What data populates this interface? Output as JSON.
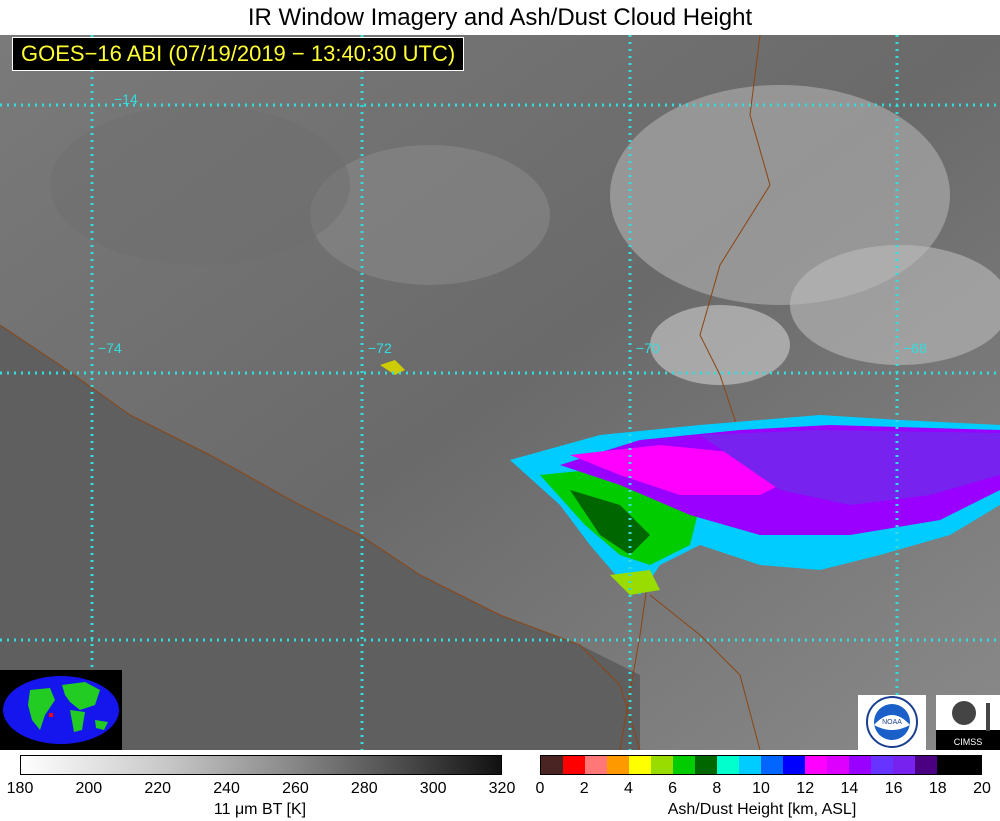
{
  "title": "IR Window Imagery and Ash/Dust Cloud Height",
  "time_stamp": "GOES−16 ABI (07/19/2019 − 13:40:30 UTC)",
  "lat_labels": [
    "−14"
  ],
  "lon_labels": [
    "−74",
    "−72",
    "−70",
    "−68"
  ],
  "bt_colorbar": {
    "label": "11 μm BT [K]",
    "ticks": [
      "180",
      "200",
      "220",
      "240",
      "260",
      "280",
      "300",
      "320"
    ]
  },
  "ash_colorbar": {
    "label": "Ash/Dust Height [km, ASL]",
    "ticks": [
      "0",
      "2",
      "4",
      "6",
      "8",
      "10",
      "12",
      "14",
      "16",
      "18",
      "20"
    ],
    "colors": [
      "#4a2323",
      "#ff0000",
      "#ff7777",
      "#ff9900",
      "#ffff00",
      "#99dd00",
      "#00cc00",
      "#006600",
      "#00ffcc",
      "#00ccff",
      "#0066ff",
      "#0000ff",
      "#ff00ff",
      "#dd00ff",
      "#9900ff",
      "#6633ff",
      "#7722ee",
      "#4b0082",
      "#000000",
      "#000000"
    ]
  },
  "logos": {
    "noaa": "NOAA",
    "cimss": "CIMSS"
  },
  "colors": {
    "grid": "#33dddd",
    "border": "#8b4513",
    "time_text": "#ffff33"
  }
}
